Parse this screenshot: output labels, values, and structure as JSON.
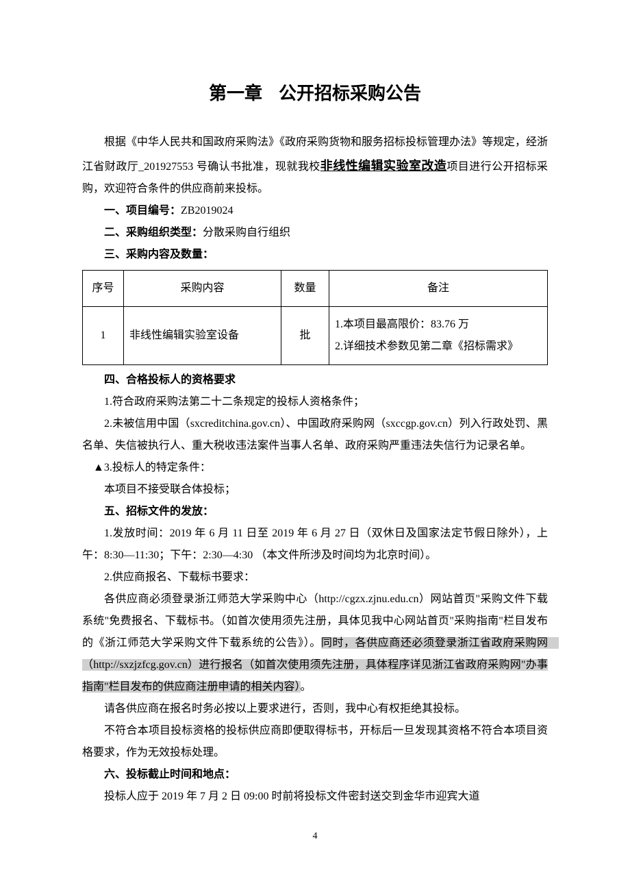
{
  "title_left": "第一章",
  "title_right": "公开招标采购公告",
  "intro_pre": "根据《中华人民共和国政府采购法》《政府采购货物和服务招标投标管理办法》等规定，经浙江省财政厅_201927553 号确认书批准，现就我校",
  "intro_project": "非线性编辑实验室改造",
  "intro_post": "项目进行公开招标采购，欢迎符合条件的供应商前来投标。",
  "sec1_head": "一、项目编号：",
  "sec1_val": "ZB2019024",
  "sec2_head": "二、采购组织类型：",
  "sec2_val": "分散采购自行组织",
  "sec3_head": "三、采购内容及数量：",
  "table": {
    "headers": [
      "序号",
      "采购内容",
      "数量",
      "备注"
    ],
    "row1": {
      "seq": "1",
      "content": "非线性编辑实验室设备",
      "qty": "批",
      "remark_l1": "1.本项目最高限价：83.76 万",
      "remark_l2": "2.详细技术参数见第二章《招标需求》"
    }
  },
  "sec4_head": "四、合格投标人的资格要求",
  "sec4_p1": "1.符合政府采购法第二十二条规定的投标人资格条件；",
  "sec4_p2": "2.未被信用中国（sxcreditchina.gov.cn）、中国政府采购网（sxccgp.gov.cn）列入行政处罚、黑名单、失信被执行人、重大税收违法案件当事人名单、政府采购严重违法失信行为记录名单。",
  "sec4_p3_prefix": "▲3.投标人的特定条件：",
  "sec4_p3_body": "本项目不接受联合体投标；",
  "sec5_head": "五、招标文件的发放：",
  "sec5_p1": "1.发放时间：2019 年 6 月 11 日至 2019 年 6 月 27 日（双休日及国家法定节假日除外），上午：8:30—11:30；下午：2:30—4:30 （本文件所涉及时间均为北京时间）。",
  "sec5_p2": "2.供应商报名、下载标书要求：",
  "sec5_p3_plain": "各供应商必须登录浙江师范大学采购中心（http://cgzx.zjnu.edu.cn）网站首页\"采购文件下载系统\"免费报名、下载标书。（如首次使用须先注册，具体见我中心网站首页\"采购指南\"栏目发布的《浙江师范大学采购文件下载系统的公告》）。",
  "sec5_p3_hl": "同时，各供应商还必须登录浙江省政府采购网　（http://sxzjzfcg.gov.cn）进行报名（如首次使用须先注册，具体程序详见浙江省政府采购网\"办事指南\"栏目发布的供应商注册申请的相关内容）",
  "sec5_p3_tail": "。",
  "sec5_p4": "请各供应商在报名时务必按以上要求进行，否则，我中心有权拒绝其投标。",
  "sec5_p5": "不符合本项目投标资格的投标供应商即便取得标书，开标后一旦发现其资格不符合本项目资格要求，作为无效投标处理。",
  "sec6_head": "六、投标截止时间和地点：",
  "sec6_p1": "投标人应于 2019 年 7 月 2 日 09:00 时前将投标文件密封送交到金华市迎宾大道",
  "page_number": "4",
  "colors": {
    "background": "#ffffff",
    "text": "#000000",
    "highlight": "#d0d0d0",
    "table_border": "#000000"
  }
}
